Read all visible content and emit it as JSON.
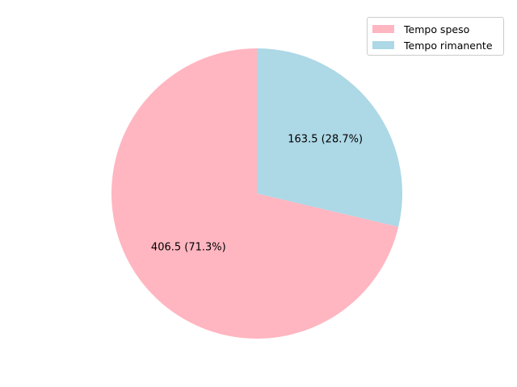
{
  "chart_data": {
    "type": "pie",
    "title": "",
    "slices": [
      {
        "name": "Tempo speso",
        "value": 406.5,
        "percent": 71.3,
        "label": "406.5 (71.3%)",
        "color": "#ffb6c1"
      },
      {
        "name": "Tempo rimanente",
        "value": 163.5,
        "percent": 28.7,
        "label": "163.5 (28.7%)",
        "color": "#add8e6"
      }
    ],
    "legend": {
      "placement": "top-right",
      "entries": [
        "Tempo speso",
        "Tempo rimanente"
      ]
    },
    "start_angle_deg": 90,
    "direction": "counterclockwise"
  }
}
